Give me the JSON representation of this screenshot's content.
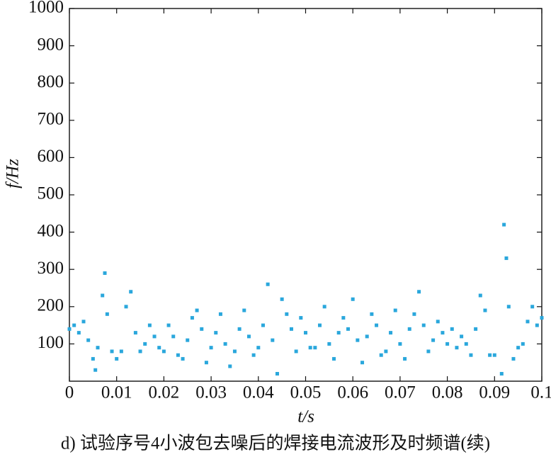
{
  "chart_data": {
    "type": "scatter",
    "x_label": "t/s",
    "y_label": "f/Hz",
    "caption": "d) 试验序号4小波包去噪后的焊接电流波形及时频谱(续)",
    "xlim": [
      0,
      0.1
    ],
    "ylim": [
      0,
      1000
    ],
    "xticks": [
      0,
      0.01,
      0.02,
      0.03,
      0.04,
      0.05,
      0.06,
      0.07,
      0.08,
      0.09,
      0.1
    ],
    "yticks": [
      100,
      200,
      300,
      400,
      500,
      600,
      700,
      800,
      900,
      1000
    ],
    "color": "#2aa7dc",
    "x": [
      0.0,
      0.001,
      0.002,
      0.003,
      0.004,
      0.005,
      0.0055,
      0.006,
      0.007,
      0.0075,
      0.008,
      0.009,
      0.01,
      0.011,
      0.012,
      0.013,
      0.014,
      0.015,
      0.016,
      0.017,
      0.018,
      0.019,
      0.02,
      0.021,
      0.022,
      0.023,
      0.024,
      0.025,
      0.026,
      0.027,
      0.028,
      0.029,
      0.03,
      0.031,
      0.032,
      0.033,
      0.034,
      0.035,
      0.036,
      0.037,
      0.038,
      0.039,
      0.04,
      0.041,
      0.042,
      0.043,
      0.044,
      0.045,
      0.046,
      0.047,
      0.048,
      0.049,
      0.05,
      0.051,
      0.052,
      0.053,
      0.054,
      0.055,
      0.056,
      0.057,
      0.058,
      0.059,
      0.06,
      0.061,
      0.062,
      0.063,
      0.064,
      0.065,
      0.066,
      0.067,
      0.068,
      0.069,
      0.07,
      0.071,
      0.072,
      0.073,
      0.074,
      0.075,
      0.076,
      0.077,
      0.078,
      0.079,
      0.08,
      0.081,
      0.082,
      0.083,
      0.084,
      0.085,
      0.086,
      0.087,
      0.088,
      0.089,
      0.09,
      0.0915,
      0.092,
      0.0925,
      0.093,
      0.094,
      0.095,
      0.096,
      0.097,
      0.098,
      0.099,
      0.1
    ],
    "y": [
      140,
      150,
      130,
      160,
      110,
      60,
      30,
      90,
      230,
      290,
      180,
      80,
      60,
      80,
      200,
      240,
      130,
      80,
      100,
      150,
      120,
      90,
      80,
      150,
      120,
      70,
      60,
      110,
      170,
      190,
      140,
      50,
      90,
      130,
      180,
      100,
      40,
      80,
      140,
      190,
      120,
      70,
      90,
      150,
      260,
      110,
      20,
      220,
      180,
      140,
      80,
      170,
      130,
      90,
      90,
      150,
      200,
      100,
      60,
      130,
      170,
      140,
      220,
      110,
      50,
      120,
      180,
      150,
      70,
      80,
      130,
      190,
      100,
      60,
      140,
      180,
      240,
      150,
      80,
      110,
      160,
      130,
      100,
      140,
      90,
      120,
      100,
      70,
      140,
      230,
      190,
      70,
      70,
      20,
      420,
      330,
      200,
      60,
      90,
      100,
      160,
      200,
      150,
      170
    ]
  }
}
